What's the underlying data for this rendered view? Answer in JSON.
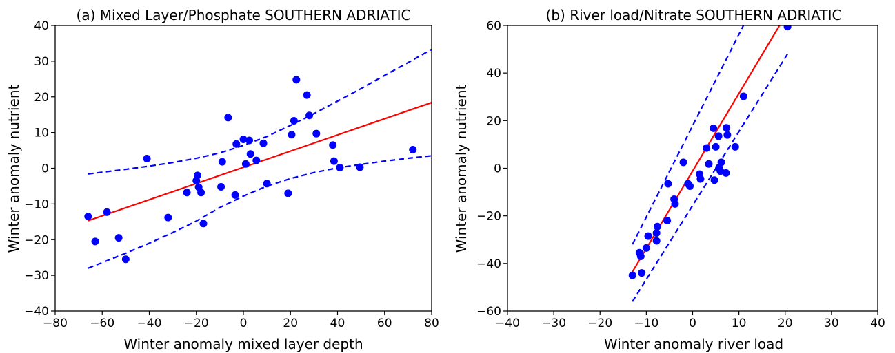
{
  "chart_data": [
    {
      "type": "scatter",
      "title": "(a) Mixed Layer/Phosphate SOUTHERN ADRIATIC",
      "xlabel": "Winter anomaly mixed layer depth",
      "ylabel": "Winter anomaly nutrient",
      "xlim": [
        -80,
        80
      ],
      "ylim": [
        -40,
        40
      ],
      "xticks": [
        -80,
        -60,
        -40,
        -20,
        0,
        20,
        40,
        60,
        80
      ],
      "yticks": [
        -40,
        -30,
        -20,
        -10,
        0,
        10,
        20,
        30,
        40
      ],
      "grid": false,
      "points_color": "#0000ff",
      "points": [
        [
          -66,
          -13.5
        ],
        [
          -63,
          -20.5
        ],
        [
          -58,
          -12.3
        ],
        [
          -53,
          -19.5
        ],
        [
          -50,
          -25.5
        ],
        [
          -41,
          2.7
        ],
        [
          -32,
          -13.8
        ],
        [
          -24,
          -6.8
        ],
        [
          -20,
          -3.5
        ],
        [
          -19.5,
          -2
        ],
        [
          -19,
          -5.3
        ],
        [
          -18,
          -6.8
        ],
        [
          -17,
          -15.5
        ],
        [
          -9.5,
          -5.2
        ],
        [
          -9,
          1.8
        ],
        [
          -6.5,
          14.2
        ],
        [
          -3.5,
          -7.5
        ],
        [
          -3,
          6.8
        ],
        [
          0,
          8.1
        ],
        [
          1,
          1.2
        ],
        [
          2.5,
          7.8
        ],
        [
          3,
          4
        ],
        [
          5.5,
          2.2
        ],
        [
          8.5,
          7
        ],
        [
          10,
          -4.3
        ],
        [
          19,
          -7
        ],
        [
          20.5,
          9.4
        ],
        [
          21.5,
          13.3
        ],
        [
          22.5,
          24.8
        ],
        [
          27,
          20.5
        ],
        [
          28,
          14.8
        ],
        [
          31,
          9.7
        ],
        [
          38,
          6.5
        ],
        [
          38.5,
          2
        ],
        [
          41,
          0.2
        ],
        [
          49.5,
          0.3
        ],
        [
          72,
          5.2
        ]
      ],
      "fit_line": {
        "color": "#ff0000",
        "x": [
          -66,
          80
        ],
        "y": [
          -14.7,
          18.4
        ]
      },
      "confidence_band": {
        "color": "#0000ff",
        "x": [
          -66,
          -50,
          -40,
          -30,
          -20,
          -10,
          0,
          10,
          20,
          30,
          40,
          50,
          60,
          70,
          80
        ],
        "upper": [
          -1.6,
          -0.3,
          0.6,
          1.6,
          2.8,
          4.3,
          6.4,
          8.9,
          12,
          15.3,
          18.8,
          22.3,
          26,
          29.6,
          33.3
        ],
        "lower": [
          -28,
          -23.8,
          -21,
          -18,
          -14.8,
          -11,
          -7.8,
          -5,
          -2.9,
          -1.2,
          0.1,
          1.1,
          2,
          2.8,
          3.5
        ]
      }
    },
    {
      "type": "scatter",
      "title": "(b) River load/Nitrate SOUTHERN ADRIATIC",
      "xlabel": "Winter anomaly river load",
      "ylabel": "Winter anomaly nutrient",
      "xlim": [
        -40,
        40
      ],
      "ylim": [
        -60,
        60
      ],
      "xticks": [
        -40,
        -30,
        -20,
        -10,
        0,
        10,
        20,
        30,
        40
      ],
      "yticks": [
        -60,
        -40,
        -20,
        0,
        20,
        40,
        60
      ],
      "grid": false,
      "points_color": "#0000ff",
      "points": [
        [
          -13,
          -45
        ],
        [
          -11.5,
          -35.5
        ],
        [
          -11.2,
          -37
        ],
        [
          -11,
          -44
        ],
        [
          -10,
          -33.5
        ],
        [
          -9.6,
          -28.5
        ],
        [
          -7.8,
          -30.5
        ],
        [
          -7.8,
          -27.2
        ],
        [
          -7.6,
          -24.5
        ],
        [
          -5.5,
          -22
        ],
        [
          -5.3,
          -6.5
        ],
        [
          -4,
          -13
        ],
        [
          -3.8,
          -15
        ],
        [
          -2,
          2.5
        ],
        [
          -1,
          -6.5
        ],
        [
          -0.6,
          -7.5
        ],
        [
          1.5,
          -2.5
        ],
        [
          1.7,
          -4.5
        ],
        [
          3,
          8.5
        ],
        [
          3.5,
          1.8
        ],
        [
          4.5,
          16.8
        ],
        [
          4.7,
          -5
        ],
        [
          5,
          9
        ],
        [
          5.6,
          13.5
        ],
        [
          5.7,
          0.2
        ],
        [
          6,
          -1.2
        ],
        [
          6.2,
          2.5
        ],
        [
          7.2,
          -2
        ],
        [
          7.3,
          17
        ],
        [
          7.5,
          14
        ],
        [
          9.2,
          9
        ],
        [
          11,
          30.2
        ],
        [
          20.5,
          59.5
        ]
      ],
      "fit_line": {
        "color": "#ff0000",
        "x": [
          -13,
          20
        ],
        "y": [
          -43.5,
          64
        ]
      },
      "confidence_band": {
        "color": "#0000ff",
        "upper": {
          "x": [
            -13,
            11.5
          ],
          "y": [
            -32,
            62
          ]
        },
        "lower": {
          "x": [
            -13,
            20.5
          ],
          "y": [
            -56,
            48
          ]
        }
      }
    }
  ]
}
